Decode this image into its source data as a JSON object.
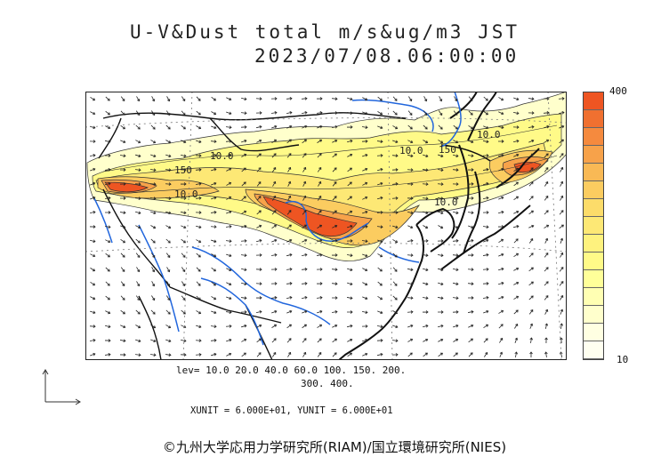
{
  "title_line1": "U-V&Dust total m/s&ug/m3 JST",
  "title_line2": "2023/07/08.06:00:00",
  "colorbar": {
    "max_label": "400",
    "min_label": "10",
    "colors": [
      "#ee5522",
      "#f07030",
      "#f58a3e",
      "#f7a24a",
      "#f9b955",
      "#fbcc60",
      "#fcdc6a",
      "#fde875",
      "#fef27e",
      "#fffa88",
      "#ffff99",
      "#ffffb3",
      "#ffffcc",
      "#ffffe2",
      "#fffff0"
    ]
  },
  "levels": {
    "line1": "lev= 10.0 20.0 40.0 60.0 100. 150. 200.",
    "line2": "300. 400."
  },
  "units": "XUNIT = 6.000E+01, YUNIT = 6.000E+01",
  "contour_labels": [
    "150",
    "10.0",
    "10.0",
    "10.0",
    "150",
    "10.0",
    "10.0"
  ],
  "credit": "©九州大学応用力学研究所(RIAM)/国立環境研究所(NIES)"
}
